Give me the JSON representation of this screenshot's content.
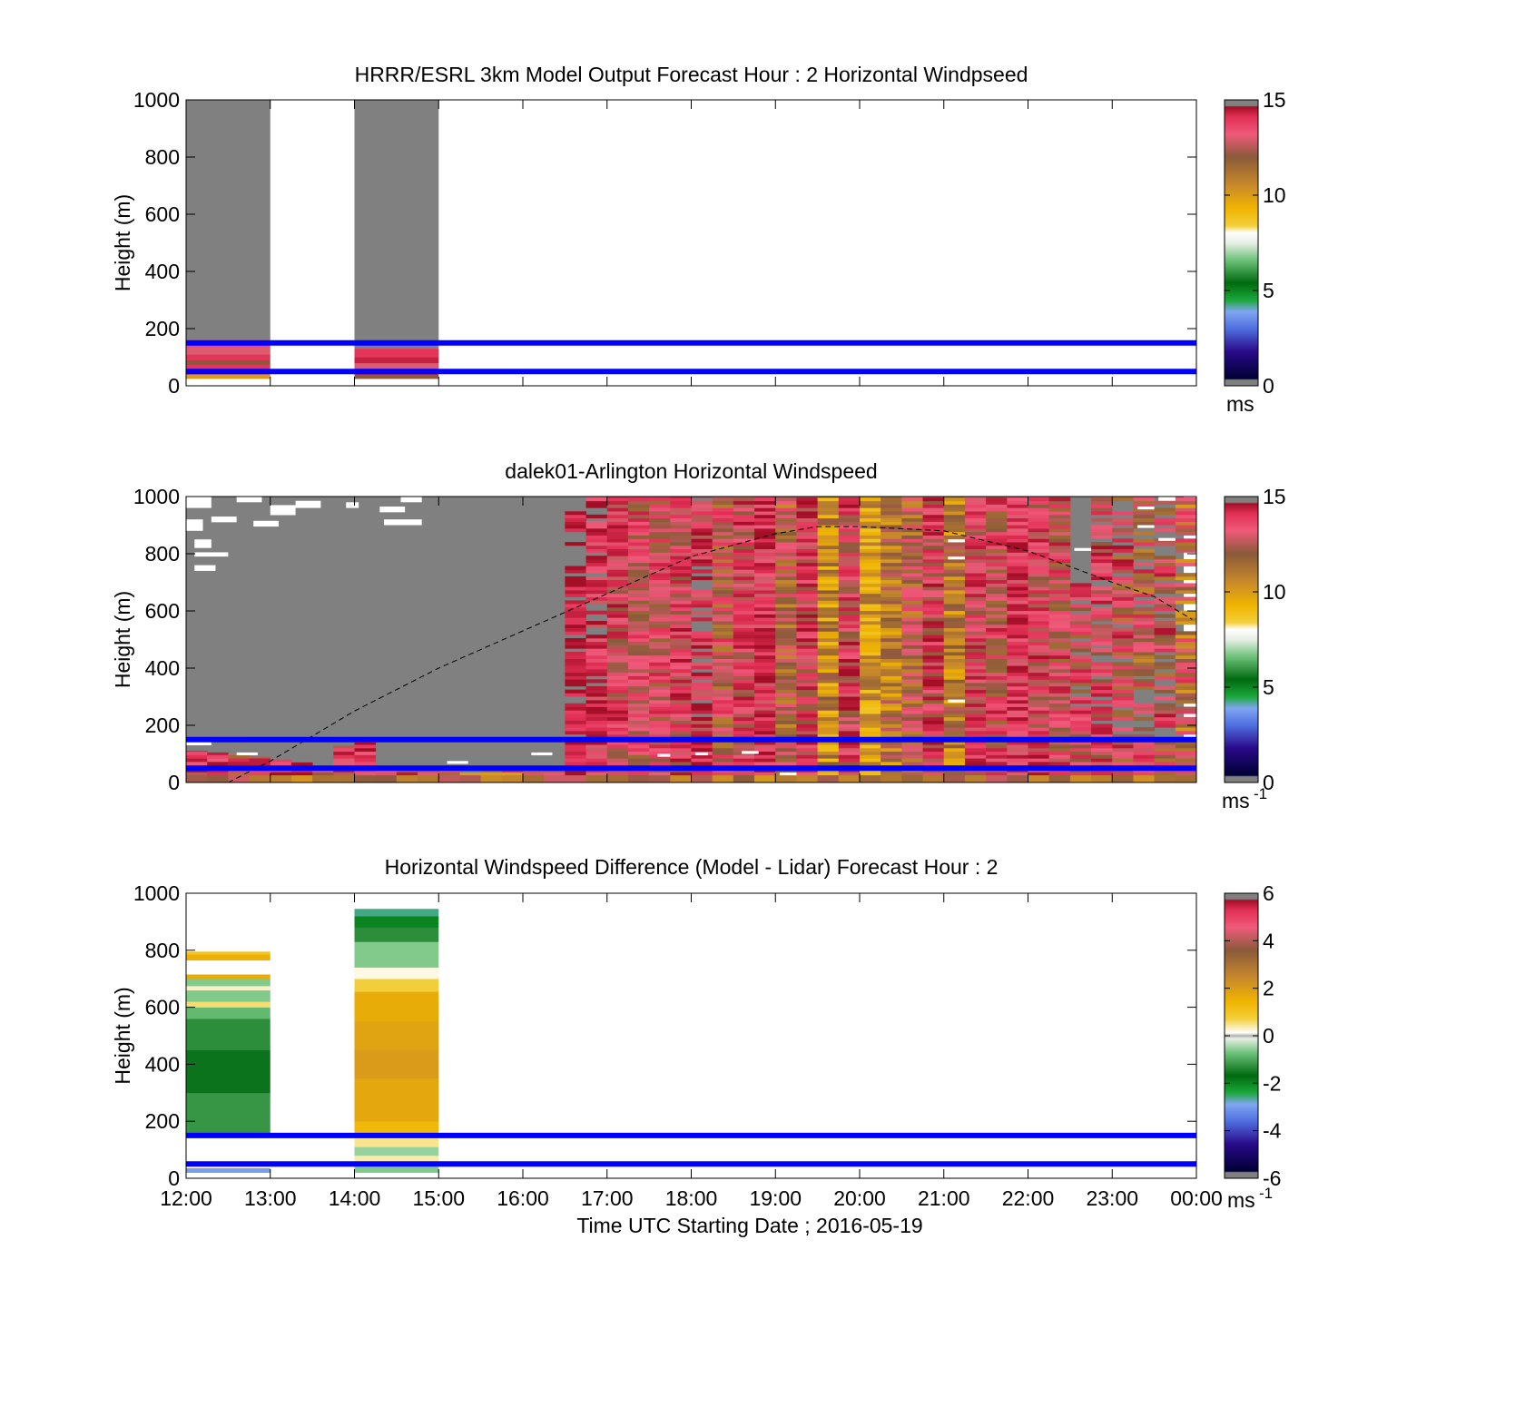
{
  "chart_data": [
    {
      "type": "heatmap",
      "title": "HRRR/ESRL 3km Model Output   Forecast Hour : 2 Horizontal Windpseed",
      "ylabel": "Height (m)",
      "ylim": [
        0,
        1000
      ],
      "yticks": [
        "0",
        "200",
        "400",
        "600",
        "800",
        "1000"
      ],
      "xlim_hours": [
        12,
        24
      ],
      "colorbar": {
        "min": 0,
        "max": 15,
        "ticks": [
          "0",
          "5",
          "10",
          "15"
        ],
        "unit_label": "ms"
      },
      "reference_lines_m": [
        50,
        150
      ],
      "blocks": [
        {
          "start_hour": 12,
          "end_hour": 13,
          "no_data_above_m": 160,
          "profile": [
            {
              "bottom": 25,
              "top": 40,
              "value": 10
            },
            {
              "bottom": 40,
              "top": 55,
              "value": 13
            },
            {
              "bottom": 55,
              "top": 75,
              "value": 14
            },
            {
              "bottom": 75,
              "top": 90,
              "value": 12
            },
            {
              "bottom": 90,
              "top": 110,
              "value": 14
            },
            {
              "bottom": 110,
              "top": 135,
              "value": 13
            },
            {
              "bottom": 135,
              "top": 160,
              "value": 13.5
            }
          ]
        },
        {
          "start_hour": 14,
          "end_hour": 15,
          "no_data_above_m": 130,
          "profile": [
            {
              "bottom": 25,
              "top": 40,
              "value": 12
            },
            {
              "bottom": 40,
              "top": 60,
              "value": 14.5
            },
            {
              "bottom": 60,
              "top": 80,
              "value": 13
            },
            {
              "bottom": 80,
              "top": 100,
              "value": 14.5
            },
            {
              "bottom": 100,
              "top": 130,
              "value": 14
            }
          ]
        }
      ]
    },
    {
      "type": "heatmap",
      "title": "dalek01-Arlington  Horizontal Windspeed",
      "ylabel": "Height (m)",
      "ylim": [
        0,
        1000
      ],
      "yticks": [
        "0",
        "200",
        "400",
        "600",
        "800",
        "1000"
      ],
      "xlim_hours": [
        12,
        24
      ],
      "colorbar": {
        "min": 0,
        "max": 15,
        "ticks": [
          "0",
          "5",
          "10",
          "15"
        ],
        "unit_label": "ms",
        "unit_superscript": "-1"
      },
      "reference_lines_m": [
        50,
        150
      ],
      "boundary_layer_curve": {
        "hours": [
          12.5,
          13.0,
          14.0,
          15.0,
          16.0,
          17.0,
          18.0,
          19.0,
          19.5,
          20.0,
          21.0,
          22.0,
          23.0,
          23.5,
          23.95
        ],
        "heights_m": [
          0,
          75,
          250,
          400,
          530,
          660,
          790,
          870,
          895,
          895,
          880,
          810,
          700,
          650,
          570
        ]
      },
      "columns": [
        {
          "hour": 12.0,
          "top_m": 110,
          "base": 14,
          "min": 12,
          "max": 15
        },
        {
          "hour": 12.25,
          "top_m": 105,
          "base": 14,
          "min": 12,
          "max": 15
        },
        {
          "hour": 12.5,
          "top_m": 100,
          "base": 13,
          "min": 11,
          "max": 15
        },
        {
          "hour": 12.75,
          "top_m": 90,
          "base": 13,
          "min": 11,
          "max": 15
        },
        {
          "hour": 13.0,
          "top_m": 80,
          "base": 14,
          "min": 12,
          "max": 15
        },
        {
          "hour": 13.25,
          "top_m": 70,
          "base": 14,
          "min": 12,
          "max": 15
        },
        {
          "hour": 13.5,
          "top_m": 60,
          "base": 13,
          "min": 11,
          "max": 15
        },
        {
          "hour": 13.75,
          "top_m": 130,
          "base": 13.5,
          "min": 12,
          "max": 15
        },
        {
          "hour": 14.0,
          "top_m": 140,
          "base": 14,
          "min": 12,
          "max": 15
        },
        {
          "hour": 14.25,
          "top_m": 60,
          "base": 13,
          "min": 11,
          "max": 15
        },
        {
          "hour": 14.5,
          "top_m": 50,
          "base": 13,
          "min": 11,
          "max": 15
        },
        {
          "hour": 14.75,
          "top_m": 45,
          "base": 13,
          "min": 11,
          "max": 15
        },
        {
          "hour": 15.0,
          "top_m": 40,
          "base": 12,
          "min": 10,
          "max": 15
        },
        {
          "hour": 15.25,
          "top_m": 35,
          "base": 12,
          "min": 10,
          "max": 15
        },
        {
          "hour": 15.5,
          "top_m": 40,
          "base": 12,
          "min": 10,
          "max": 15
        },
        {
          "hour": 15.75,
          "top_m": 40,
          "base": 12,
          "min": 10,
          "max": 15
        },
        {
          "hour": 16.0,
          "top_m": 40,
          "base": 13,
          "min": 11,
          "max": 15
        },
        {
          "hour": 16.25,
          "top_m": 45,
          "base": 13,
          "min": 11,
          "max": 15
        },
        {
          "hour": 16.5,
          "top_m": 950,
          "base": 14.5,
          "min": 13.5,
          "max": 15,
          "gappy": true
        },
        {
          "hour": 16.75,
          "top_m": 1000,
          "base": 14,
          "min": 12.5,
          "max": 15,
          "gappy": true
        },
        {
          "hour": 17.0,
          "top_m": 1000,
          "base": 13.5,
          "min": 12,
          "max": 15
        },
        {
          "hour": 17.25,
          "top_m": 1000,
          "base": 13,
          "min": 11.5,
          "max": 14.5
        },
        {
          "hour": 17.5,
          "top_m": 1000,
          "base": 13,
          "min": 11.5,
          "max": 14.5
        },
        {
          "hour": 17.75,
          "top_m": 1000,
          "base": 13.5,
          "min": 12,
          "max": 15
        },
        {
          "hour": 18.0,
          "top_m": 1000,
          "base": 14,
          "min": 12,
          "max": 15,
          "gappy": true
        },
        {
          "hour": 18.25,
          "top_m": 1000,
          "base": 12.5,
          "min": 11,
          "max": 14.5
        },
        {
          "hour": 18.5,
          "top_m": 1000,
          "base": 13.5,
          "min": 12,
          "max": 15
        },
        {
          "hour": 18.75,
          "top_m": 1000,
          "base": 14,
          "min": 12.5,
          "max": 15
        },
        {
          "hour": 19.0,
          "top_m": 1000,
          "base": 12,
          "min": 10.5,
          "max": 14
        },
        {
          "hour": 19.25,
          "top_m": 1000,
          "base": 13.5,
          "min": 11.5,
          "max": 15
        },
        {
          "hour": 19.5,
          "top_m": 1000,
          "base": 10.5,
          "min": 9,
          "max": 12.5
        },
        {
          "hour": 19.75,
          "top_m": 1000,
          "base": 13.5,
          "min": 11.5,
          "max": 15
        },
        {
          "hour": 20.0,
          "top_m": 1000,
          "base": 10,
          "min": 8.8,
          "max": 12
        },
        {
          "hour": 20.25,
          "top_m": 1000,
          "base": 11,
          "min": 9.5,
          "max": 13
        },
        {
          "hour": 20.5,
          "top_m": 1000,
          "base": 12,
          "min": 10.5,
          "max": 14
        },
        {
          "hour": 20.75,
          "top_m": 1000,
          "base": 13.5,
          "min": 11.5,
          "max": 15
        },
        {
          "hour": 21.0,
          "top_m": 1000,
          "base": 11,
          "min": 9.5,
          "max": 13
        },
        {
          "hour": 21.25,
          "top_m": 1000,
          "base": 13.5,
          "min": 12,
          "max": 15
        },
        {
          "hour": 21.5,
          "top_m": 1000,
          "base": 13,
          "min": 11.5,
          "max": 15
        },
        {
          "hour": 21.75,
          "top_m": 1000,
          "base": 14,
          "min": 12.5,
          "max": 15
        },
        {
          "hour": 22.0,
          "top_m": 1000,
          "base": 13.5,
          "min": 12,
          "max": 15
        },
        {
          "hour": 22.25,
          "top_m": 1000,
          "base": 13,
          "min": 11.5,
          "max": 15
        },
        {
          "hour": 22.5,
          "top_m": 700,
          "base": 13,
          "min": 11.5,
          "max": 15,
          "gappy": true
        },
        {
          "hour": 22.75,
          "top_m": 1000,
          "base": 13.5,
          "min": 12,
          "max": 15,
          "gappy": true
        },
        {
          "hour": 23.0,
          "top_m": 1000,
          "base": 13,
          "min": 11,
          "max": 15,
          "gappy": true
        },
        {
          "hour": 23.25,
          "top_m": 1000,
          "base": 12.5,
          "min": 10.5,
          "max": 14.5,
          "gappy": true
        },
        {
          "hour": 23.5,
          "top_m": 1000,
          "base": 13,
          "min": 11,
          "max": 15,
          "gappy": true
        },
        {
          "hour": 23.75,
          "top_m": 1000,
          "base": 12,
          "min": 10,
          "max": 14.5,
          "gappy": true
        }
      ],
      "no_data_patches": [
        {
          "h0": 12.0,
          "h1": 12.3,
          "bottom_m": 960,
          "top_m": 1000
        },
        {
          "h0": 12.0,
          "h1": 12.2,
          "bottom_m": 880,
          "top_m": 920
        },
        {
          "h0": 12.1,
          "h1": 12.3,
          "bottom_m": 820,
          "top_m": 850
        },
        {
          "h0": 12.1,
          "h1": 12.5,
          "bottom_m": 790,
          "top_m": 805
        },
        {
          "h0": 12.1,
          "h1": 12.35,
          "bottom_m": 740,
          "top_m": 760
        },
        {
          "h0": 12.6,
          "h1": 12.9,
          "bottom_m": 980,
          "top_m": 1000
        },
        {
          "h0": 12.3,
          "h1": 12.6,
          "bottom_m": 910,
          "top_m": 930
        },
        {
          "h0": 12.8,
          "h1": 13.1,
          "bottom_m": 895,
          "top_m": 915
        },
        {
          "h0": 13.0,
          "h1": 13.3,
          "bottom_m": 935,
          "top_m": 970
        },
        {
          "h0": 13.3,
          "h1": 13.6,
          "bottom_m": 960,
          "top_m": 985
        },
        {
          "h0": 13.9,
          "h1": 14.05,
          "bottom_m": 960,
          "top_m": 980
        },
        {
          "h0": 14.3,
          "h1": 14.6,
          "bottom_m": 945,
          "top_m": 965
        },
        {
          "h0": 14.35,
          "h1": 14.8,
          "bottom_m": 900,
          "top_m": 920
        },
        {
          "h0": 14.55,
          "h1": 14.8,
          "bottom_m": 980,
          "top_m": 1000
        },
        {
          "h0": 12.0,
          "h1": 12.3,
          "bottom_m": 130,
          "top_m": 145
        },
        {
          "h0": 12.6,
          "h1": 12.85,
          "bottom_m": 95,
          "top_m": 105
        },
        {
          "h0": 15.1,
          "h1": 15.35,
          "bottom_m": 65,
          "top_m": 75
        },
        {
          "h0": 16.1,
          "h1": 16.35,
          "bottom_m": 95,
          "top_m": 105
        },
        {
          "h0": 21.05,
          "h1": 21.25,
          "bottom_m": 840,
          "top_m": 850
        },
        {
          "h0": 21.05,
          "h1": 21.25,
          "bottom_m": 780,
          "top_m": 790
        },
        {
          "h0": 21.05,
          "h1": 21.25,
          "bottom_m": 280,
          "top_m": 290
        },
        {
          "h0": 22.55,
          "h1": 22.75,
          "bottom_m": 810,
          "top_m": 820
        },
        {
          "h0": 23.3,
          "h1": 23.5,
          "bottom_m": 955,
          "top_m": 965
        },
        {
          "h0": 23.3,
          "h1": 23.5,
          "bottom_m": 890,
          "top_m": 900
        },
        {
          "h0": 23.55,
          "h1": 23.75,
          "bottom_m": 985,
          "top_m": 1000
        },
        {
          "h0": 23.55,
          "h1": 23.75,
          "bottom_m": 845,
          "top_m": 855
        },
        {
          "h0": 17.6,
          "h1": 17.75,
          "bottom_m": 90,
          "top_m": 100
        },
        {
          "h0": 18.05,
          "h1": 18.2,
          "bottom_m": 95,
          "top_m": 105
        },
        {
          "h0": 18.6,
          "h1": 18.8,
          "bottom_m": 100,
          "top_m": 110
        },
        {
          "h0": 19.05,
          "h1": 19.25,
          "bottom_m": 25,
          "top_m": 35
        }
      ]
    },
    {
      "type": "heatmap",
      "title": "Horizontal Windspeed Difference (Model - Lidar) Forecast Hour : 2",
      "ylabel": "Height (m)",
      "xlabel": "Time UTC  Starting Date ; 2016-05-19",
      "ylim": [
        0,
        1000
      ],
      "yticks": [
        "0",
        "200",
        "400",
        "600",
        "800",
        "1000"
      ],
      "xlim_hours": [
        12,
        24
      ],
      "xticks": [
        "12:00",
        "13:00",
        "14:00",
        "15:00",
        "16:00",
        "17:00",
        "18:00",
        "19:00",
        "20:00",
        "21:00",
        "22:00",
        "23:00",
        "00:00"
      ],
      "colorbar": {
        "min": -6,
        "max": 6,
        "ticks": [
          "-6",
          "-4",
          "-2",
          "0",
          "2",
          "4",
          "6"
        ],
        "unit_label": "ms",
        "unit_superscript": "-1"
      },
      "reference_lines_m": [
        50,
        150
      ],
      "blocks": [
        {
          "start_hour": 12,
          "end_hour": 13,
          "profile": [
            {
              "bottom": 20,
              "top": 35,
              "value": -3.0
            },
            {
              "bottom": 160,
              "top": 300,
              "value": -1.2
            },
            {
              "bottom": 300,
              "top": 450,
              "value": -1.6
            },
            {
              "bottom": 450,
              "top": 560,
              "value": -1.3
            },
            {
              "bottom": 560,
              "top": 600,
              "value": -0.8
            },
            {
              "bottom": 600,
              "top": 620,
              "value": 0.5
            },
            {
              "bottom": 620,
              "top": 660,
              "value": -0.6
            },
            {
              "bottom": 660,
              "top": 675,
              "value": 0.2
            },
            {
              "bottom": 675,
              "top": 700,
              "value": -0.6
            },
            {
              "bottom": 700,
              "top": 715,
              "value": 1.6
            },
            {
              "bottom": 765,
              "top": 785,
              "value": 1.5
            },
            {
              "bottom": 785,
              "top": 795,
              "value": 1.0
            }
          ]
        },
        {
          "start_hour": 14,
          "end_hour": 15,
          "profile": [
            {
              "bottom": 20,
              "top": 40,
              "value": -0.6
            },
            {
              "bottom": 40,
              "top": 60,
              "value": -0.4
            },
            {
              "bottom": 60,
              "top": 80,
              "value": 0.3
            },
            {
              "bottom": 80,
              "top": 110,
              "value": -0.5
            },
            {
              "bottom": 110,
              "top": 150,
              "value": 0.4
            },
            {
              "bottom": 150,
              "top": 200,
              "value": 1.3
            },
            {
              "bottom": 200,
              "top": 350,
              "value": 1.7
            },
            {
              "bottom": 350,
              "top": 450,
              "value": 2.0
            },
            {
              "bottom": 450,
              "top": 550,
              "value": 1.8
            },
            {
              "bottom": 550,
              "top": 655,
              "value": 1.6
            },
            {
              "bottom": 655,
              "top": 700,
              "value": 0.7
            },
            {
              "bottom": 700,
              "top": 740,
              "value": 0.1
            },
            {
              "bottom": 740,
              "top": 830,
              "value": -0.6
            },
            {
              "bottom": 830,
              "top": 880,
              "value": -1.3
            },
            {
              "bottom": 880,
              "top": 920,
              "value": -2.0
            },
            {
              "bottom": 920,
              "top": 945,
              "value": -2.6
            }
          ]
        }
      ]
    }
  ]
}
